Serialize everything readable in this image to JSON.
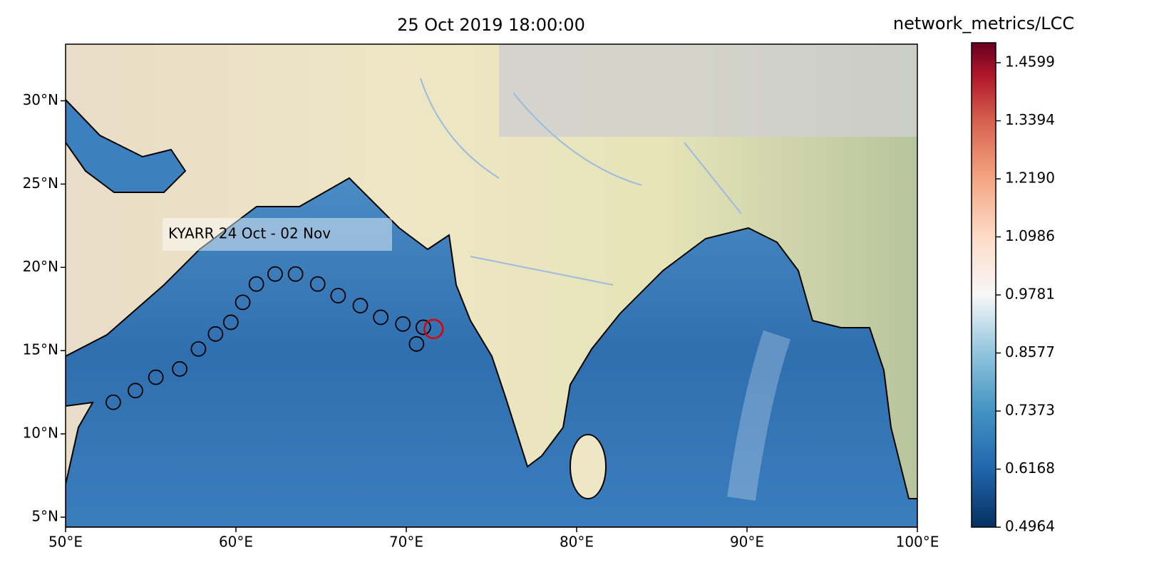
{
  "map": {
    "title": "25 Oct 2019 18:00:00",
    "colorbar_label": "network_metrics/LCC",
    "annotation": "KYARR 24 Oct - 02 Nov",
    "xlim": [
      50,
      100
    ],
    "ylim": [
      4.4,
      33.4
    ],
    "xticks": [
      {
        "value": 50,
        "label": "50°E"
      },
      {
        "value": 60,
        "label": "60°E"
      },
      {
        "value": 70,
        "label": "70°E"
      },
      {
        "value": 80,
        "label": "80°E"
      },
      {
        "value": 90,
        "label": "90°E"
      },
      {
        "value": 100,
        "label": "100°E"
      }
    ],
    "yticks": [
      {
        "value": 5,
        "label": "5°N"
      },
      {
        "value": 10,
        "label": "10°N"
      },
      {
        "value": 15,
        "label": "15°N"
      },
      {
        "value": 20,
        "label": "20°N"
      },
      {
        "value": 25,
        "label": "25°N"
      },
      {
        "value": 30,
        "label": "30°N"
      }
    ],
    "clim": [
      0.4964,
      1.5013
    ],
    "cticks": [
      0.4964,
      0.6168,
      0.7373,
      0.8577,
      0.9781,
      1.0986,
      {
        "value": 1.219,
        "label": "1.2190"
      },
      1.3394,
      1.4599
    ],
    "track": {
      "color": "#000000",
      "x": [
        52.8,
        54.1,
        55.3,
        56.7,
        57.8,
        58.8,
        59.7,
        60.4,
        61.2,
        62.3,
        63.5,
        64.8,
        66.0,
        67.3,
        68.5,
        69.8,
        71.0,
        70.6
      ],
      "y": [
        11.9,
        12.6,
        13.4,
        13.9,
        15.1,
        16.0,
        16.7,
        17.9,
        19.0,
        19.6,
        19.6,
        19.0,
        18.3,
        17.7,
        17.0,
        16.6,
        16.4,
        15.4
      ]
    },
    "current": {
      "color": "#e00000",
      "x": 71.6,
      "y": 16.3
    }
  }
}
